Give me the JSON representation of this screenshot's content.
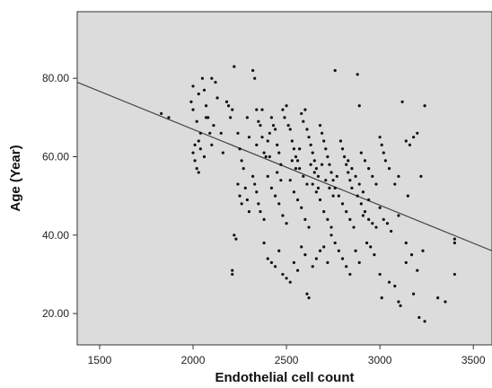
{
  "chart_data": {
    "type": "scatter",
    "title": "",
    "xlabel": "Endothelial cell count",
    "ylabel": "Age (Year)",
    "xlim": [
      1380,
      3600
    ],
    "ylim": [
      12,
      97
    ],
    "x_ticks": [
      1500,
      2000,
      2500,
      3000,
      3500
    ],
    "y_ticks": [
      20,
      40,
      60,
      80
    ],
    "y_tick_labels": [
      "20.00",
      "40.00",
      "60.00",
      "80.00"
    ],
    "grid": false,
    "legend": "none",
    "background_color": "#dcdcdc",
    "point_color": "#111111",
    "line_color": "#444444",
    "fit_line": {
      "x": [
        1380,
        3600
      ],
      "y": [
        79,
        36
      ]
    },
    "points": [
      [
        1830,
        71
      ],
      [
        1870,
        70
      ],
      [
        1990,
        74
      ],
      [
        2000,
        72
      ],
      [
        2010,
        63
      ],
      [
        2000,
        61
      ],
      [
        2010,
        59
      ],
      [
        2020,
        57
      ],
      [
        2030,
        56
      ],
      [
        2040,
        66
      ],
      [
        2000,
        78
      ],
      [
        2030,
        76
      ],
      [
        2050,
        80
      ],
      [
        2060,
        77
      ],
      [
        2070,
        73
      ],
      [
        2080,
        70
      ],
      [
        2090,
        66
      ],
      [
        2100,
        80
      ],
      [
        2120,
        79
      ],
      [
        2130,
        75
      ],
      [
        2020,
        69
      ],
      [
        2040,
        62
      ],
      [
        2060,
        60
      ],
      [
        2100,
        63
      ],
      [
        2150,
        66
      ],
      [
        2180,
        74
      ],
      [
        2190,
        73
      ],
      [
        2200,
        70
      ],
      [
        2210,
        72
      ],
      [
        2220,
        83
      ],
      [
        2240,
        66
      ],
      [
        2250,
        62
      ],
      [
        2260,
        59
      ],
      [
        2270,
        57
      ],
      [
        2290,
        70
      ],
      [
        2300,
        65
      ],
      [
        2320,
        82
      ],
      [
        2330,
        80
      ],
      [
        2340,
        72
      ],
      [
        2350,
        69
      ],
      [
        2360,
        68
      ],
      [
        2370,
        65
      ],
      [
        2380,
        61
      ],
      [
        2390,
        60
      ],
      [
        2400,
        64
      ],
      [
        2410,
        66
      ],
      [
        2420,
        70
      ],
      [
        2430,
        68
      ],
      [
        2440,
        67
      ],
      [
        2450,
        63
      ],
      [
        2460,
        61
      ],
      [
        2470,
        58
      ],
      [
        2480,
        72
      ],
      [
        2490,
        70
      ],
      [
        2500,
        73
      ],
      [
        2510,
        68
      ],
      [
        2520,
        67
      ],
      [
        2530,
        64
      ],
      [
        2540,
        62
      ],
      [
        2550,
        60
      ],
      [
        2560,
        59
      ],
      [
        2570,
        57
      ],
      [
        2580,
        71
      ],
      [
        2590,
        69
      ],
      [
        2600,
        72
      ],
      [
        2610,
        67
      ],
      [
        2620,
        65
      ],
      [
        2630,
        63
      ],
      [
        2640,
        61
      ],
      [
        2650,
        59
      ],
      [
        2660,
        57
      ],
      [
        2670,
        55
      ],
      [
        2680,
        68
      ],
      [
        2690,
        66
      ],
      [
        2700,
        64
      ],
      [
        2710,
        62
      ],
      [
        2720,
        60
      ],
      [
        2730,
        58
      ],
      [
        2740,
        56
      ],
      [
        2750,
        54
      ],
      [
        2760,
        82
      ],
      [
        2790,
        64
      ],
      [
        2800,
        62
      ],
      [
        2810,
        60
      ],
      [
        2820,
        58
      ],
      [
        2830,
        56
      ],
      [
        2840,
        54
      ],
      [
        2850,
        52
      ],
      [
        2880,
        81
      ],
      [
        2890,
        73
      ],
      [
        2900,
        61
      ],
      [
        2920,
        59
      ],
      [
        2940,
        57
      ],
      [
        2960,
        55
      ],
      [
        2980,
        53
      ],
      [
        3000,
        65
      ],
      [
        3010,
        63
      ],
      [
        3020,
        61
      ],
      [
        3030,
        59
      ],
      [
        3050,
        57
      ],
      [
        3080,
        53
      ],
      [
        3100,
        55
      ],
      [
        3120,
        74
      ],
      [
        3140,
        64
      ],
      [
        3160,
        63
      ],
      [
        3180,
        65
      ],
      [
        3200,
        66
      ],
      [
        3240,
        73
      ],
      [
        3220,
        55
      ],
      [
        3150,
        50
      ],
      [
        2240,
        53
      ],
      [
        2250,
        50
      ],
      [
        2260,
        48
      ],
      [
        2280,
        52
      ],
      [
        2290,
        49
      ],
      [
        2300,
        46
      ],
      [
        2320,
        55
      ],
      [
        2330,
        53
      ],
      [
        2340,
        51
      ],
      [
        2350,
        48
      ],
      [
        2360,
        46
      ],
      [
        2380,
        44
      ],
      [
        2400,
        55
      ],
      [
        2420,
        52
      ],
      [
        2440,
        50
      ],
      [
        2460,
        48
      ],
      [
        2480,
        45
      ],
      [
        2500,
        43
      ],
      [
        2520,
        54
      ],
      [
        2540,
        51
      ],
      [
        2560,
        49
      ],
      [
        2580,
        47
      ],
      [
        2600,
        44
      ],
      [
        2620,
        42
      ],
      [
        2640,
        53
      ],
      [
        2660,
        51
      ],
      [
        2680,
        49
      ],
      [
        2700,
        46
      ],
      [
        2720,
        44
      ],
      [
        2740,
        42
      ],
      [
        2760,
        52
      ],
      [
        2780,
        50
      ],
      [
        2800,
        48
      ],
      [
        2820,
        46
      ],
      [
        2840,
        44
      ],
      [
        2860,
        42
      ],
      [
        2880,
        50
      ],
      [
        2900,
        48
      ],
      [
        2920,
        46
      ],
      [
        2940,
        44
      ],
      [
        2960,
        43
      ],
      [
        2980,
        42
      ],
      [
        3000,
        47
      ],
      [
        3020,
        44
      ],
      [
        3040,
        43
      ],
      [
        3060,
        41
      ],
      [
        3100,
        45
      ],
      [
        3140,
        38
      ],
      [
        3170,
        35
      ],
      [
        3230,
        36
      ],
      [
        2220,
        40
      ],
      [
        2230,
        39
      ],
      [
        2210,
        31
      ],
      [
        2210,
        30
      ],
      [
        2380,
        38
      ],
      [
        2400,
        34
      ],
      [
        2420,
        33
      ],
      [
        2440,
        32
      ],
      [
        2460,
        36
      ],
      [
        2480,
        30
      ],
      [
        2500,
        29
      ],
      [
        2520,
        28
      ],
      [
        2540,
        33
      ],
      [
        2560,
        31
      ],
      [
        2580,
        37
      ],
      [
        2600,
        35
      ],
      [
        2610,
        25
      ],
      [
        2620,
        24
      ],
      [
        2640,
        32
      ],
      [
        2660,
        34
      ],
      [
        2680,
        36
      ],
      [
        2700,
        37
      ],
      [
        2720,
        33
      ],
      [
        2740,
        40
      ],
      [
        2760,
        38
      ],
      [
        2780,
        36
      ],
      [
        2800,
        34
      ],
      [
        2820,
        32
      ],
      [
        2840,
        30
      ],
      [
        2870,
        36
      ],
      [
        2890,
        33
      ],
      [
        2910,
        45
      ],
      [
        2930,
        38
      ],
      [
        2950,
        37
      ],
      [
        2970,
        35
      ],
      [
        3000,
        30
      ],
      [
        3010,
        24
      ],
      [
        3050,
        28
      ],
      [
        3080,
        27
      ],
      [
        3100,
        23
      ],
      [
        3110,
        22
      ],
      [
        3140,
        33
      ],
      [
        3180,
        25
      ],
      [
        3200,
        31
      ],
      [
        3210,
        19
      ],
      [
        3240,
        18
      ],
      [
        3310,
        24
      ],
      [
        3350,
        23
      ],
      [
        3400,
        39
      ],
      [
        3400,
        38
      ],
      [
        3400,
        30
      ],
      [
        2030,
        64
      ],
      [
        2160,
        61
      ],
      [
        2110,
        68
      ],
      [
        2070,
        70
      ],
      [
        2340,
        63
      ],
      [
        2370,
        72
      ],
      [
        2410,
        60
      ],
      [
        2450,
        56
      ],
      [
        2470,
        54
      ],
      [
        2530,
        59
      ],
      [
        2550,
        57
      ],
      [
        2570,
        62
      ],
      [
        2590,
        55
      ],
      [
        2610,
        53
      ],
      [
        2630,
        58
      ],
      [
        2650,
        56
      ],
      [
        2670,
        52
      ],
      [
        2690,
        58
      ],
      [
        2710,
        54
      ],
      [
        2730,
        52
      ],
      [
        2750,
        50
      ],
      [
        2770,
        55
      ],
      [
        2830,
        59
      ],
      [
        2850,
        57
      ],
      [
        2870,
        55
      ],
      [
        2890,
        53
      ],
      [
        2910,
        51
      ],
      [
        2940,
        49
      ]
    ]
  }
}
